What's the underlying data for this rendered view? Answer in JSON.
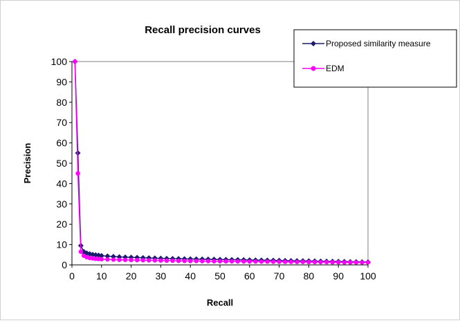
{
  "chart_data": {
    "type": "line",
    "title": "Recall precision curves",
    "xlabel": "Recall",
    "ylabel": "Precision",
    "xlim": [
      0,
      100
    ],
    "ylim": [
      0,
      100
    ],
    "x_ticks": [
      "0",
      "10",
      "20",
      "30",
      "40",
      "50",
      "60",
      "70",
      "80",
      "90",
      "100"
    ],
    "y_ticks": [
      "0",
      "10",
      "20",
      "30",
      "40",
      "50",
      "60",
      "70",
      "80",
      "90",
      "100"
    ],
    "grid": "horizontal line at 100 only",
    "legend_position": "top-right",
    "series": [
      {
        "name": "Proposed similarity measure",
        "color": "#1a1a6e",
        "marker": "diamond",
        "x": [
          1,
          2,
          3,
          4,
          5,
          6,
          7,
          8,
          9,
          10,
          12,
          14,
          16,
          18,
          20,
          22,
          24,
          26,
          28,
          30,
          32,
          34,
          36,
          38,
          40,
          42,
          44,
          46,
          48,
          50,
          52,
          54,
          56,
          58,
          60,
          62,
          64,
          66,
          68,
          70,
          72,
          74,
          76,
          78,
          80,
          82,
          84,
          86,
          88,
          90,
          92,
          94,
          96,
          98,
          100
        ],
        "y": [
          100,
          55,
          9.5,
          6.5,
          5.8,
          5.4,
          5.1,
          4.9,
          4.7,
          4.5,
          4.3,
          4.1,
          3.9,
          3.8,
          3.7,
          3.6,
          3.5,
          3.4,
          3.3,
          3.2,
          3.1,
          3.05,
          3.0,
          2.95,
          2.9,
          2.85,
          2.8,
          2.75,
          2.7,
          2.65,
          2.6,
          2.55,
          2.5,
          2.45,
          2.4,
          2.35,
          2.3,
          2.25,
          2.2,
          2.15,
          2.1,
          2.05,
          2.0,
          1.95,
          1.9,
          1.85,
          1.8,
          1.75,
          1.7,
          1.65,
          1.6,
          1.55,
          1.5,
          1.45,
          1.4
        ]
      },
      {
        "name": "EDM",
        "color": "#ff00ff",
        "marker": "circle",
        "x": [
          1,
          2,
          3,
          4,
          5,
          6,
          7,
          8,
          9,
          10,
          12,
          14,
          16,
          18,
          20,
          22,
          24,
          26,
          28,
          30,
          32,
          34,
          36,
          38,
          40,
          42,
          44,
          46,
          48,
          50,
          52,
          54,
          56,
          58,
          60,
          62,
          64,
          66,
          68,
          70,
          72,
          74,
          76,
          78,
          80,
          82,
          84,
          86,
          88,
          90,
          92,
          94,
          96,
          98,
          100
        ],
        "y": [
          100,
          45,
          6.5,
          4.5,
          3.8,
          3.4,
          3.2,
          3.0,
          2.9,
          2.8,
          2.7,
          2.6,
          2.5,
          2.45,
          2.4,
          2.35,
          2.3,
          2.25,
          2.2,
          2.15,
          2.1,
          2.05,
          2.0,
          1.95,
          1.9,
          1.9,
          1.85,
          1.85,
          1.8,
          1.8,
          1.75,
          1.75,
          1.7,
          1.7,
          1.65,
          1.65,
          1.6,
          1.6,
          1.55,
          1.55,
          1.5,
          1.5,
          1.45,
          1.45,
          1.4,
          1.4,
          1.35,
          1.35,
          1.3,
          1.3,
          1.25,
          1.25,
          1.2,
          1.2,
          1.2
        ]
      }
    ]
  }
}
